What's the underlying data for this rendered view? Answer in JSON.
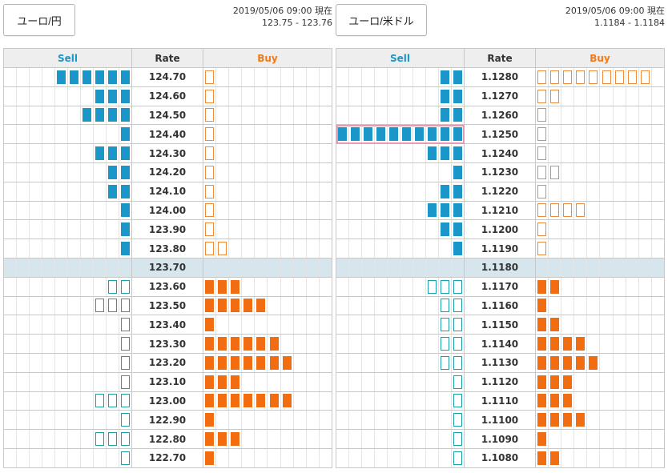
{
  "colors": {
    "sell_filled": "#1a96c8",
    "sell_outline": "#1aa0a8",
    "buy_filled": "#f26d11",
    "buy_outline": "#ee8a3c",
    "current_row": "#d7e6ec",
    "highlight": "#e79ab4"
  },
  "headers": {
    "sell": "Sell",
    "rate": "Rate",
    "buy": "Buy"
  },
  "panels": [
    {
      "pair_label": "ユーロ/円",
      "timestamp": "2019/05/06 09:00 現在",
      "bid_ask": "123.75 - 123.76",
      "cells_per_side": 10,
      "rows": [
        {
          "rate": "124.70",
          "sell": 6,
          "sell_style": "filled",
          "buy": 1,
          "buy_style": "outline"
        },
        {
          "rate": "124.60",
          "sell": 3,
          "sell_style": "filled",
          "buy": 1,
          "buy_style": "outline"
        },
        {
          "rate": "124.50",
          "sell": 4,
          "sell_style": "filled",
          "buy": 1,
          "buy_style": "outline"
        },
        {
          "rate": "124.40",
          "sell": 1,
          "sell_style": "filled",
          "buy": 1,
          "buy_style": "outline"
        },
        {
          "rate": "124.30",
          "sell": 3,
          "sell_style": "filled",
          "buy": 1,
          "buy_style": "outline"
        },
        {
          "rate": "124.20",
          "sell": 2,
          "sell_style": "filled",
          "buy": 1,
          "buy_style": "outline"
        },
        {
          "rate": "124.10",
          "sell": 2,
          "sell_style": "filled",
          "buy": 1,
          "buy_style": "outline"
        },
        {
          "rate": "124.00",
          "sell": 1,
          "sell_style": "filled",
          "buy": 1,
          "buy_style": "outline"
        },
        {
          "rate": "123.90",
          "sell": 1,
          "sell_style": "filled",
          "buy": 1,
          "buy_style": "outline"
        },
        {
          "rate": "123.80",
          "sell": 1,
          "sell_style": "filled",
          "buy": 2,
          "buy_style": "outline"
        },
        {
          "rate": "123.70",
          "sell": 0,
          "sell_style": "filled",
          "buy": 0,
          "buy_style": "filled",
          "current": true
        },
        {
          "rate": "123.60",
          "sell": 2,
          "sell_style": "outline",
          "buy": 3,
          "buy_style": "filled"
        },
        {
          "rate": "123.50",
          "sell": 3,
          "sell_style": "outline",
          "buy": 5,
          "buy_style": "filled"
        },
        {
          "rate": "123.40",
          "sell": 1,
          "sell_style": "outline",
          "buy": 1,
          "buy_style": "filled"
        },
        {
          "rate": "123.30",
          "sell": 1,
          "sell_style": "outline",
          "buy": 6,
          "buy_style": "filled"
        },
        {
          "rate": "123.20",
          "sell": 1,
          "sell_style": "outline",
          "buy": 7,
          "buy_style": "filled"
        },
        {
          "rate": "123.10",
          "sell": 1,
          "sell_style": "outline",
          "buy": 3,
          "buy_style": "filled"
        },
        {
          "rate": "123.00",
          "sell": 3,
          "sell_style": "outline",
          "buy": 7,
          "buy_style": "filled"
        },
        {
          "rate": "122.90",
          "sell": 1,
          "sell_style": "outline",
          "buy": 1,
          "buy_style": "filled"
        },
        {
          "rate": "122.80",
          "sell": 3,
          "sell_style": "outline",
          "buy": 3,
          "buy_style": "filled"
        },
        {
          "rate": "122.70",
          "sell": 1,
          "sell_style": "outline",
          "buy": 1,
          "buy_style": "filled"
        }
      ]
    },
    {
      "pair_label": "ユーロ/米ドル",
      "timestamp": "2019/05/06 09:00 現在",
      "bid_ask": "1.1184 - 1.1184",
      "cells_per_side": 10,
      "rows": [
        {
          "rate": "1.1280",
          "sell": 2,
          "sell_style": "filled",
          "buy": 9,
          "buy_style": "outline"
        },
        {
          "rate": "1.1270",
          "sell": 2,
          "sell_style": "filled",
          "buy": 2,
          "buy_style": "outline"
        },
        {
          "rate": "1.1260",
          "sell": 2,
          "sell_style": "filled",
          "buy": 1,
          "buy_style": "outline"
        },
        {
          "rate": "1.1250",
          "sell": 10,
          "sell_style": "filled",
          "buy": 1,
          "buy_style": "outline",
          "highlight": true
        },
        {
          "rate": "1.1240",
          "sell": 3,
          "sell_style": "filled",
          "buy": 1,
          "buy_style": "outline"
        },
        {
          "rate": "1.1230",
          "sell": 1,
          "sell_style": "filled",
          "buy": 2,
          "buy_style": "outline"
        },
        {
          "rate": "1.1220",
          "sell": 2,
          "sell_style": "filled",
          "buy": 1,
          "buy_style": "outline"
        },
        {
          "rate": "1.1210",
          "sell": 3,
          "sell_style": "filled",
          "buy": 4,
          "buy_style": "outline"
        },
        {
          "rate": "1.1200",
          "sell": 2,
          "sell_style": "filled",
          "buy": 1,
          "buy_style": "outline"
        },
        {
          "rate": "1.1190",
          "sell": 1,
          "sell_style": "filled",
          "buy": 1,
          "buy_style": "outline"
        },
        {
          "rate": "1.1180",
          "sell": 0,
          "sell_style": "filled",
          "buy": 0,
          "buy_style": "filled",
          "current": true
        },
        {
          "rate": "1.1170",
          "sell": 3,
          "sell_style": "outline",
          "buy": 2,
          "buy_style": "filled"
        },
        {
          "rate": "1.1160",
          "sell": 2,
          "sell_style": "outline",
          "buy": 1,
          "buy_style": "filled"
        },
        {
          "rate": "1.1150",
          "sell": 2,
          "sell_style": "outline",
          "buy": 2,
          "buy_style": "filled"
        },
        {
          "rate": "1.1140",
          "sell": 2,
          "sell_style": "outline",
          "buy": 4,
          "buy_style": "filled"
        },
        {
          "rate": "1.1130",
          "sell": 2,
          "sell_style": "outline",
          "buy": 5,
          "buy_style": "filled"
        },
        {
          "rate": "1.1120",
          "sell": 1,
          "sell_style": "outline",
          "buy": 3,
          "buy_style": "filled"
        },
        {
          "rate": "1.1110",
          "sell": 1,
          "sell_style": "outline",
          "buy": 3,
          "buy_style": "filled"
        },
        {
          "rate": "1.1100",
          "sell": 1,
          "sell_style": "outline",
          "buy": 4,
          "buy_style": "filled"
        },
        {
          "rate": "1.1090",
          "sell": 1,
          "sell_style": "outline",
          "buy": 1,
          "buy_style": "filled"
        },
        {
          "rate": "1.1080",
          "sell": 1,
          "sell_style": "outline",
          "buy": 2,
          "buy_style": "filled"
        }
      ]
    }
  ]
}
